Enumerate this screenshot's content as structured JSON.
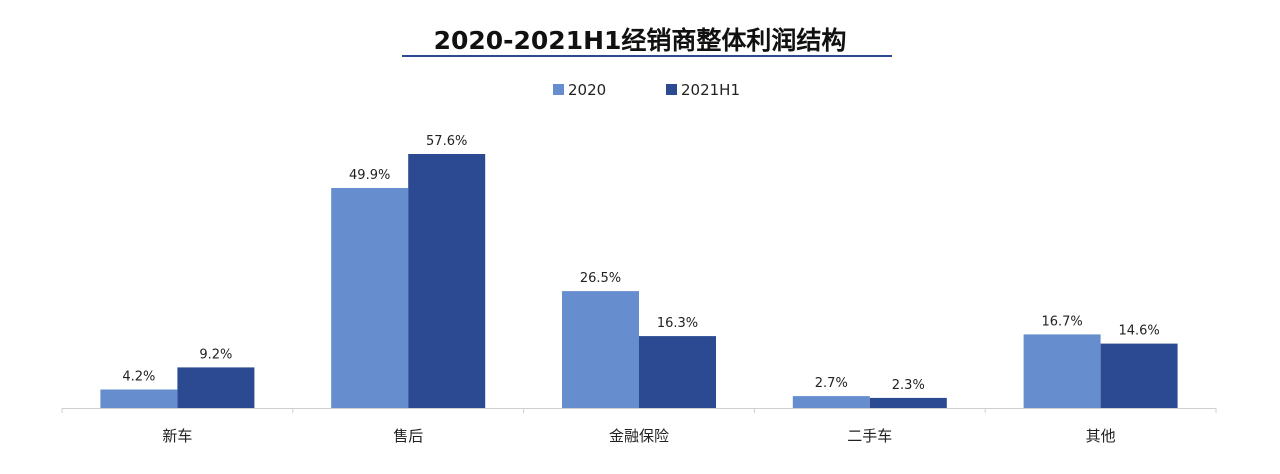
{
  "chart_data": {
    "type": "bar",
    "title": "2020-2021H1经销商整体利润结构",
    "categories": [
      "新车",
      "售后",
      "金融保险",
      "二手车",
      "其他"
    ],
    "series": [
      {
        "name": "2020",
        "color": "#668ecf",
        "values": [
          4.2,
          49.9,
          26.5,
          2.7,
          16.7
        ],
        "labels": [
          "4.2%",
          "49.9%",
          "26.5%",
          "2.7%",
          "16.7%"
        ]
      },
      {
        "name": "2021H1",
        "color": "#2c4a91",
        "values": [
          9.2,
          57.6,
          16.3,
          2.3,
          14.6
        ],
        "labels": [
          "9.2%",
          "57.6%",
          "16.3%",
          "2.3%",
          "14.6%"
        ]
      }
    ],
    "ylim": [
      0,
      58
    ],
    "legend_position": "top-center",
    "grid": false,
    "colors": {
      "axis": "#d0d0d0",
      "title_underline": "#2c4a91"
    }
  }
}
